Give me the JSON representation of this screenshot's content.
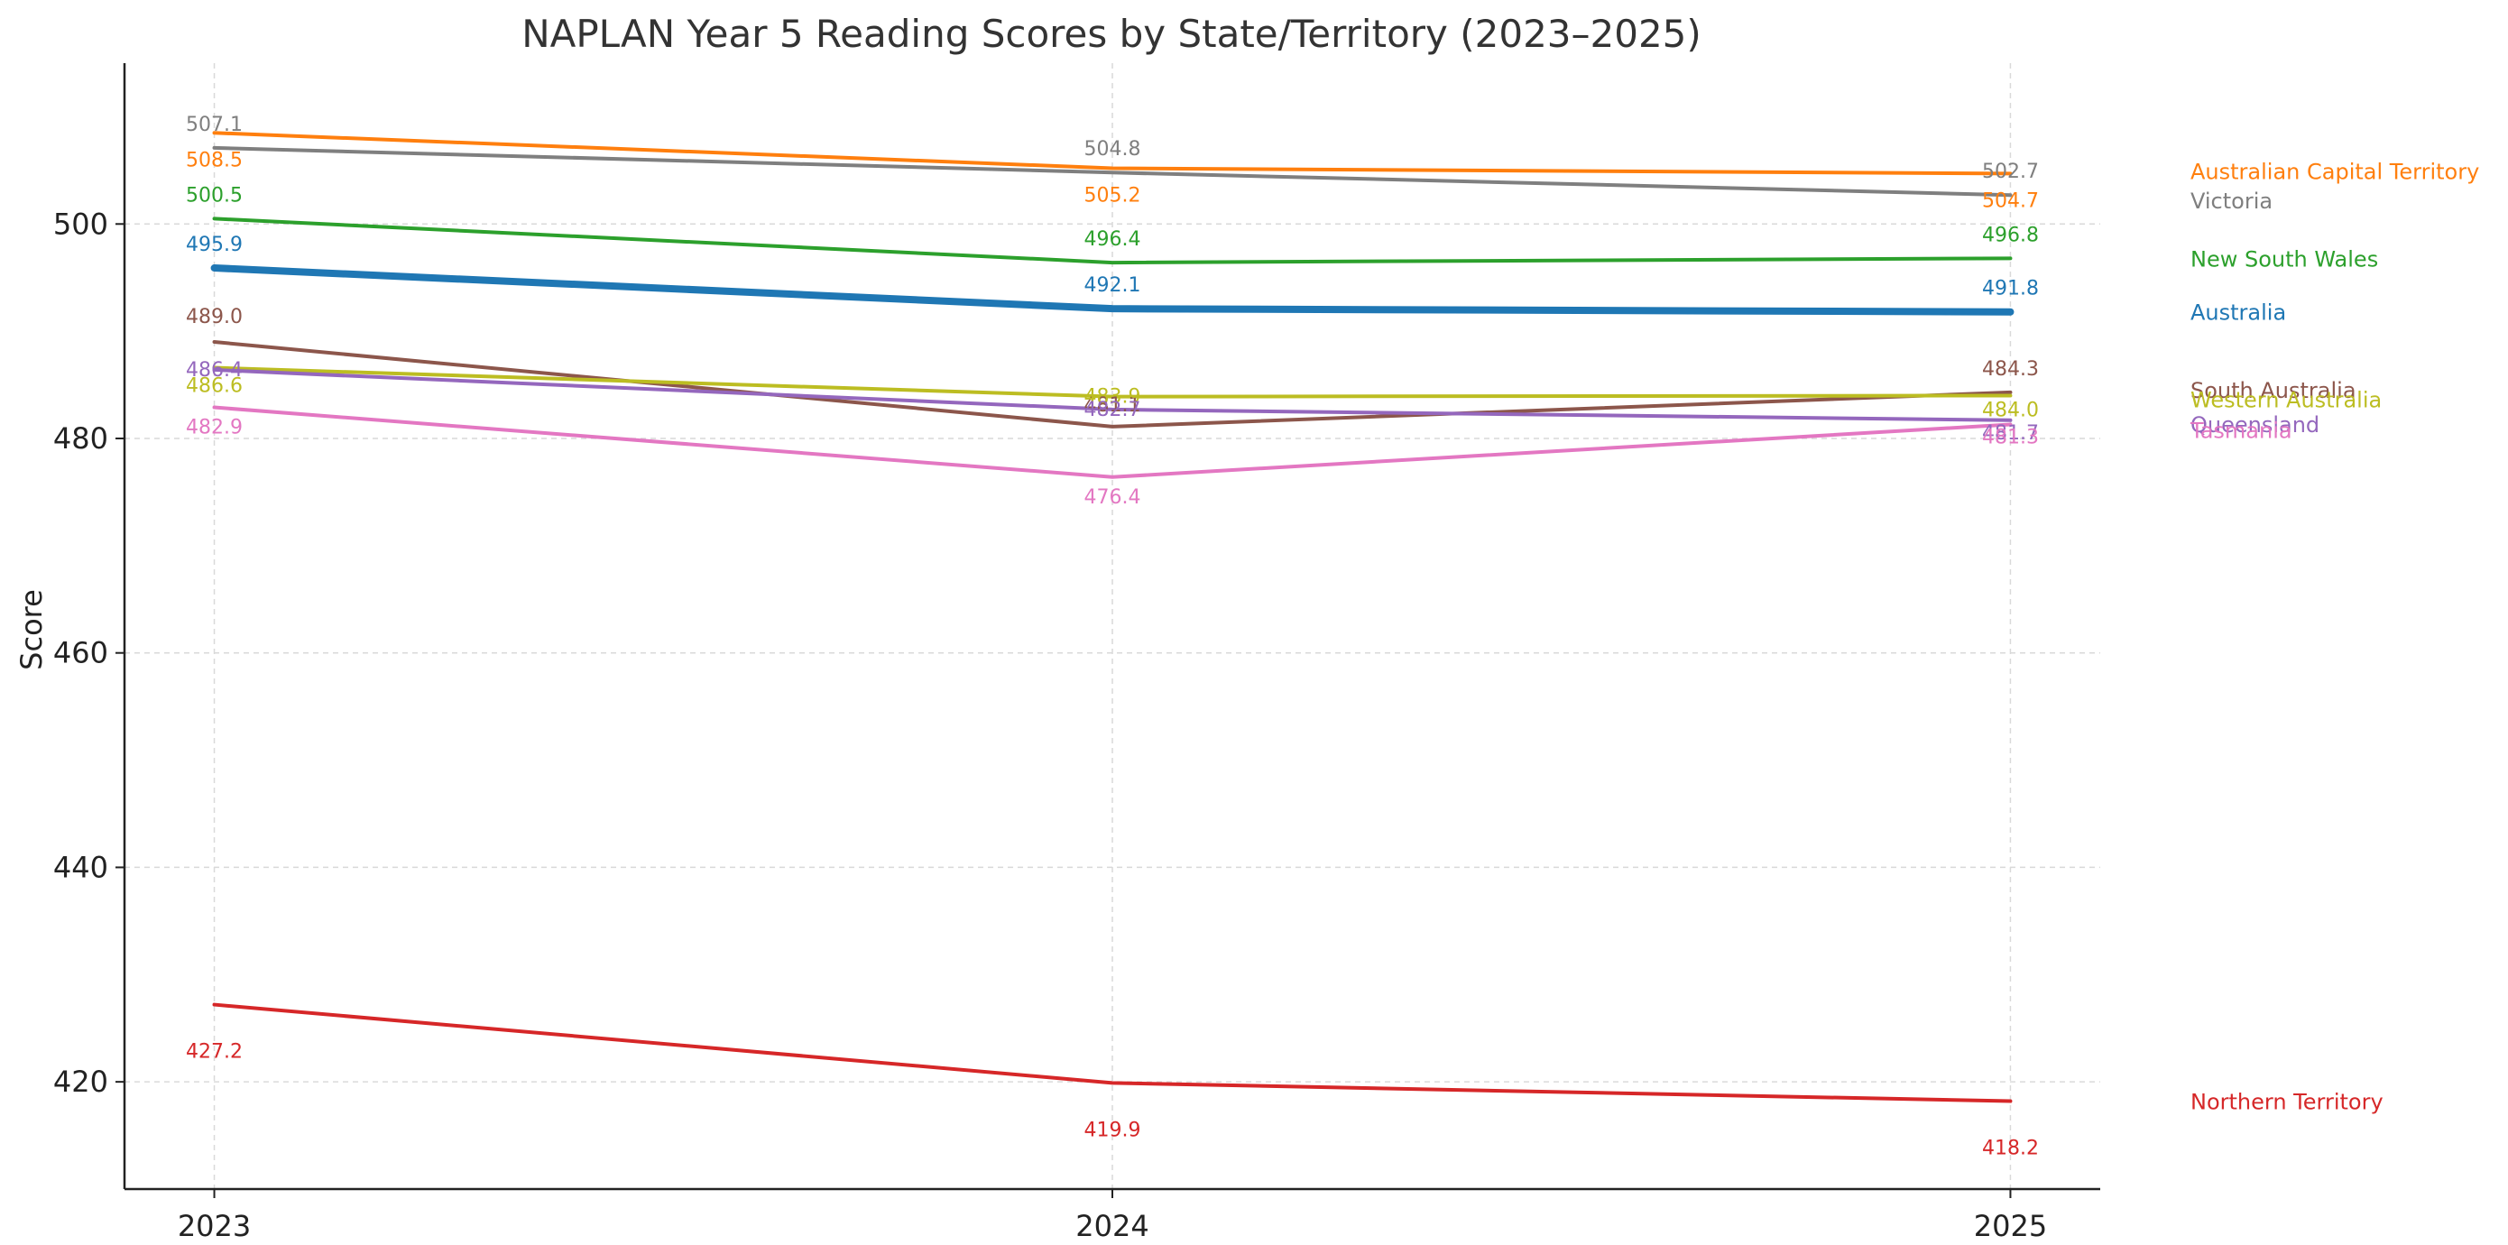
{
  "chart_data": {
    "type": "line",
    "title": "NAPLAN Year 5 Reading Scores by State/Territory (2023–2025)",
    "xlabel": "",
    "ylabel": "Score",
    "x": [
      "2023",
      "2024",
      "2025"
    ],
    "xlim": [
      2022.9,
      2025.1
    ],
    "ylim": [
      410,
      515
    ],
    "yticks": [
      420,
      440,
      460,
      480,
      500
    ],
    "grid": true,
    "legend": "none (series labelled at line ends)",
    "series": [
      {
        "name": "Australian Capital Territory",
        "color": "#ff7f0e",
        "values": [
          508.5,
          505.2,
          504.7
        ],
        "labels": [
          "508.5",
          "505.2",
          "504.7"
        ]
      },
      {
        "name": "Victoria",
        "color": "#7f7f7f",
        "values": [
          507.1,
          504.8,
          502.7
        ],
        "labels": [
          "507.1",
          "504.8",
          "502.7"
        ]
      },
      {
        "name": "New South Wales",
        "color": "#2ca02c",
        "values": [
          500.5,
          496.4,
          496.8
        ],
        "labels": [
          "500.5",
          "496.4",
          "496.8"
        ]
      },
      {
        "name": "Australia",
        "color": "#1f77b4",
        "emphasis": true,
        "values": [
          495.9,
          492.1,
          491.8
        ],
        "labels": [
          "495.9",
          "492.1",
          "491.8"
        ]
      },
      {
        "name": "South Australia",
        "color": "#8c564b",
        "values": [
          489.0,
          481.1,
          484.3
        ],
        "labels": [
          "489.0",
          "481.1",
          "484.3"
        ]
      },
      {
        "name": "Western Australia",
        "color": "#bcbd22",
        "values": [
          486.6,
          483.9,
          484.0
        ],
        "labels": [
          "486.6",
          "483.9",
          "484.0"
        ]
      },
      {
        "name": "Queensland",
        "color": "#9467bd",
        "values": [
          486.4,
          482.7,
          481.7
        ],
        "labels": [
          "486.4",
          "482.7",
          "481.7"
        ]
      },
      {
        "name": "Tasmania",
        "color": "#e377c2",
        "values": [
          482.9,
          476.4,
          481.3
        ],
        "labels": [
          "482.9",
          "476.4",
          "481.3"
        ]
      },
      {
        "name": "Northern Territory",
        "color": "#d62728",
        "values": [
          427.2,
          419.9,
          418.2
        ],
        "labels": [
          "427.2",
          "419.9",
          "418.2"
        ]
      }
    ]
  }
}
